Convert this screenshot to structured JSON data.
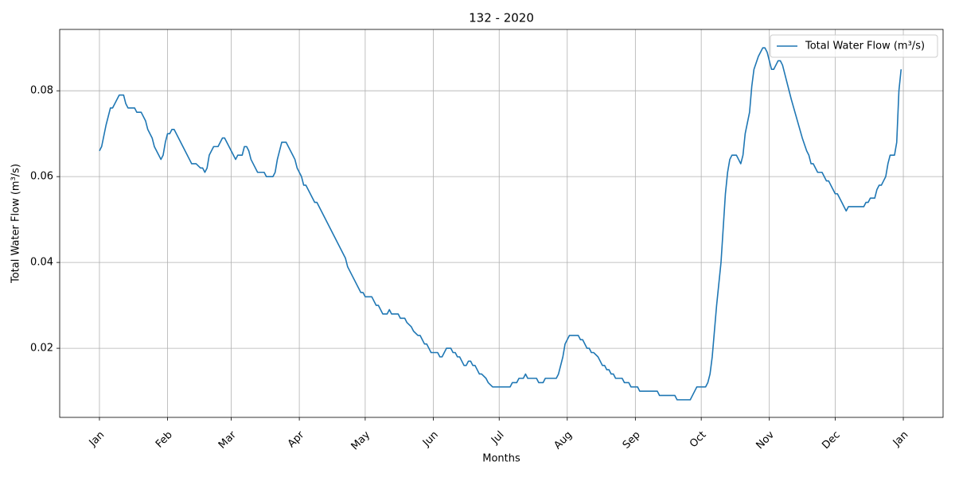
{
  "chart_data": {
    "type": "line",
    "title": "132 - 2020",
    "xlabel": "Months",
    "ylabel": "Total Water Flow (m³/s)",
    "x": [
      0,
      1,
      3,
      5,
      6,
      8,
      9,
      11,
      12,
      13,
      16,
      17,
      19,
      21,
      22,
      24,
      25,
      26,
      27,
      28,
      29,
      30,
      31,
      32,
      33,
      34,
      38,
      42,
      44,
      46,
      47,
      48,
      49,
      50,
      52,
      54,
      56,
      57,
      60,
      61,
      62,
      63,
      65,
      66,
      67,
      68,
      69,
      72,
      75,
      76,
      79,
      80,
      81,
      83,
      85,
      87,
      88,
      89,
      90,
      92,
      93,
      94,
      97,
      98,
      99,
      112,
      113,
      115,
      118,
      119,
      120,
      121,
      124,
      126,
      127,
      129,
      131,
      132,
      133,
      136,
      137,
      139,
      140,
      142,
      143,
      145,
      146,
      148,
      149,
      151,
      154,
      155,
      156,
      158,
      160,
      161,
      162,
      163,
      164,
      166,
      167,
      168,
      169,
      170,
      171,
      173,
      174,
      176,
      177,
      179,
      187,
      188,
      190,
      191,
      193,
      194,
      195,
      199,
      200,
      202,
      203,
      208,
      209,
      211,
      212,
      213,
      214,
      218,
      219,
      220,
      222,
      223,
      224,
      225,
      227,
      228,
      229,
      230,
      231,
      232,
      233,
      234,
      235,
      238,
      239,
      241,
      242,
      245,
      246,
      254,
      255,
      262,
      263,
      269,
      271,
      272,
      276,
      277,
      278,
      279,
      280,
      281,
      283,
      284,
      285,
      286,
      287,
      288,
      290,
      291,
      292,
      293,
      294,
      296,
      297,
      298,
      300,
      301,
      302,
      303,
      304,
      305,
      306,
      307,
      308,
      309,
      310,
      311,
      312,
      315,
      320,
      322,
      323,
      324,
      325,
      327,
      329,
      330,
      331,
      332,
      334,
      335,
      336,
      338,
      339,
      340,
      341,
      348,
      349,
      350,
      351,
      353,
      354,
      355,
      356,
      357,
      358,
      359,
      360,
      362,
      363,
      364,
      365
    ],
    "series": [
      {
        "name": "Total Water Flow (m³/s)",
        "color": "#1f77b4",
        "values": [
          0.066,
          0.067,
          0.072,
          0.076,
          0.076,
          0.078,
          0.079,
          0.079,
          0.077,
          0.076,
          0.076,
          0.075,
          0.075,
          0.073,
          0.071,
          0.069,
          0.067,
          0.066,
          0.065,
          0.064,
          0.065,
          0.068,
          0.07,
          0.07,
          0.071,
          0.071,
          0.067,
          0.063,
          0.063,
          0.062,
          0.062,
          0.061,
          0.062,
          0.065,
          0.067,
          0.067,
          0.069,
          0.069,
          0.066,
          0.065,
          0.064,
          0.065,
          0.065,
          0.067,
          0.067,
          0.066,
          0.064,
          0.061,
          0.061,
          0.06,
          0.06,
          0.061,
          0.064,
          0.068,
          0.068,
          0.066,
          0.065,
          0.064,
          0.062,
          0.06,
          0.058,
          0.058,
          0.055,
          0.054,
          0.054,
          0.041,
          0.039,
          0.037,
          0.034,
          0.033,
          0.033,
          0.032,
          0.032,
          0.03,
          0.03,
          0.028,
          0.028,
          0.029,
          0.028,
          0.028,
          0.027,
          0.027,
          0.026,
          0.025,
          0.024,
          0.023,
          0.023,
          0.021,
          0.021,
          0.019,
          0.019,
          0.018,
          0.018,
          0.02,
          0.02,
          0.019,
          0.019,
          0.018,
          0.018,
          0.016,
          0.016,
          0.017,
          0.017,
          0.016,
          0.016,
          0.014,
          0.014,
          0.013,
          0.012,
          0.011,
          0.011,
          0.012,
          0.012,
          0.013,
          0.013,
          0.014,
          0.013,
          0.013,
          0.012,
          0.012,
          0.013,
          0.013,
          0.014,
          0.018,
          0.021,
          0.022,
          0.023,
          0.023,
          0.022,
          0.022,
          0.02,
          0.02,
          0.019,
          0.019,
          0.018,
          0.017,
          0.016,
          0.016,
          0.015,
          0.015,
          0.014,
          0.014,
          0.013,
          0.013,
          0.012,
          0.012,
          0.011,
          0.011,
          0.01,
          0.01,
          0.009,
          0.009,
          0.008,
          0.008,
          0.01,
          0.011,
          0.011,
          0.012,
          0.014,
          0.018,
          0.024,
          0.03,
          0.04,
          0.048,
          0.056,
          0.061,
          0.064,
          0.065,
          0.065,
          0.064,
          0.063,
          0.065,
          0.07,
          0.075,
          0.081,
          0.085,
          0.088,
          0.089,
          0.09,
          0.09,
          0.089,
          0.087,
          0.085,
          0.085,
          0.086,
          0.087,
          0.087,
          0.086,
          0.084,
          0.078,
          0.069,
          0.066,
          0.065,
          0.063,
          0.063,
          0.061,
          0.061,
          0.06,
          0.059,
          0.059,
          0.057,
          0.056,
          0.056,
          0.054,
          0.053,
          0.052,
          0.053,
          0.053,
          0.054,
          0.054,
          0.055,
          0.055,
          0.057,
          0.058,
          0.058,
          0.059,
          0.06,
          0.063,
          0.065,
          0.065,
          0.068,
          0.08,
          0.085
        ]
      }
    ],
    "xlim": [
      -18.1,
      384.1
    ],
    "ylim": [
      0.0039,
      0.0943
    ],
    "xticks": [
      {
        "value": 0,
        "label": "Jan"
      },
      {
        "value": 31,
        "label": "Feb"
      },
      {
        "value": 60,
        "label": "Mar"
      },
      {
        "value": 91,
        "label": "Apr"
      },
      {
        "value": 121,
        "label": "May"
      },
      {
        "value": 152,
        "label": "Jun"
      },
      {
        "value": 182,
        "label": "Jul"
      },
      {
        "value": 213,
        "label": "Aug"
      },
      {
        "value": 244,
        "label": "Sep"
      },
      {
        "value": 274,
        "label": "Oct"
      },
      {
        "value": 305,
        "label": "Nov"
      },
      {
        "value": 335,
        "label": "Dec"
      },
      {
        "value": 366,
        "label": "Jan"
      }
    ],
    "yticks": [
      0.02,
      0.04,
      0.06,
      0.08
    ],
    "grid": true,
    "legend": "upper right"
  }
}
